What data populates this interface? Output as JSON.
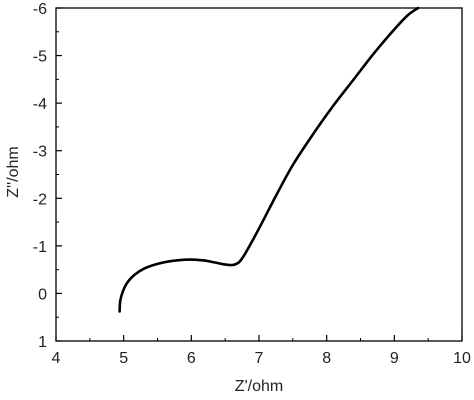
{
  "chart_data": {
    "type": "line",
    "title": "",
    "xlabel": "Z'/ohm",
    "ylabel": "Z''/ohm",
    "xlim": [
      4,
      10
    ],
    "ylim": [
      1,
      -6
    ],
    "y_axis_inverted": true,
    "x_ticks": [
      4,
      5,
      6,
      7,
      8,
      9,
      10
    ],
    "x_tick_labels": [
      "4",
      "5",
      "6",
      "7",
      "8",
      "9",
      "10"
    ],
    "y_ticks": [
      1,
      0,
      -1,
      -2,
      -3,
      -4,
      -5,
      -6
    ],
    "y_tick_labels": [
      "1",
      "0",
      "-1",
      "-2",
      "-3",
      "-4",
      "-5",
      "-6"
    ],
    "grid": false,
    "legend": "none",
    "line_color": "#000000",
    "series": [
      {
        "x": [
          4.94,
          4.95,
          4.99,
          5.05,
          5.15,
          5.3,
          5.5,
          5.7,
          5.9,
          6.05,
          6.2,
          6.35,
          6.45,
          6.55,
          6.62,
          6.7,
          6.78,
          6.9,
          7.05,
          7.25,
          7.5,
          7.8,
          8.1,
          8.4,
          8.7,
          9.0,
          9.2,
          9.35
        ],
        "y": [
          0.38,
          0.15,
          -0.05,
          -0.22,
          -0.38,
          -0.52,
          -0.62,
          -0.68,
          -0.71,
          -0.71,
          -0.69,
          -0.65,
          -0.62,
          -0.6,
          -0.6,
          -0.65,
          -0.8,
          -1.1,
          -1.5,
          -2.05,
          -2.7,
          -3.35,
          -3.95,
          -4.5,
          -5.05,
          -5.55,
          -5.85,
          -6.0
        ]
      }
    ]
  }
}
